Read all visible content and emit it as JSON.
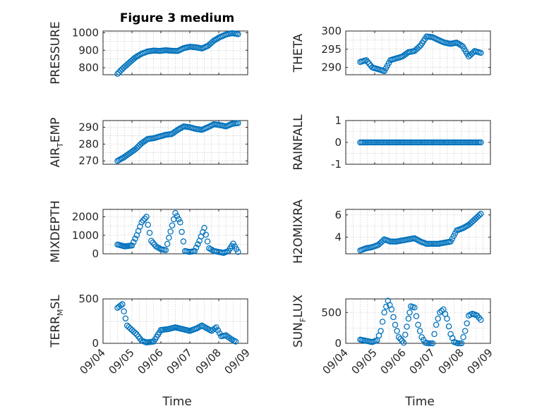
{
  "figure": {
    "title": "Figure 3 medium",
    "xlabel": "Time",
    "x_tick_labels": [
      "09/04",
      "09/05",
      "09/06",
      "09/07",
      "09/08",
      "09/09"
    ],
    "marker_color": "#0072bd"
  },
  "chart_data": [
    {
      "type": "scatter",
      "ylabel": "PRESSURE",
      "ylim": [
        760,
        1010
      ],
      "yticks": [
        800,
        900,
        1000
      ],
      "grid": true,
      "x": [
        "09/04 12:00",
        "09/04 17:00",
        "09/04 22:00",
        "09/05 03:00",
        "09/05 08:00",
        "09/05 13:00",
        "09/05 18:00",
        "09/05 23:00",
        "09/06 04:00",
        "09/06 09:00",
        "09/06 14:00",
        "09/06 19:00",
        "09/07 00:00",
        "09/07 05:00",
        "09/07 10:00",
        "09/07 15:00",
        "09/07 20:00",
        "09/08 01:00",
        "09/08 06:00",
        "09/08 11:00",
        "09/08 16:00"
      ],
      "y": [
        765,
        800,
        830,
        860,
        880,
        893,
        898,
        896,
        900,
        897,
        896,
        912,
        920,
        917,
        910,
        925,
        955,
        975,
        990,
        998,
        992
      ]
    },
    {
      "type": "scatter",
      "ylabel": "THETA",
      "ylim": [
        288,
        300
      ],
      "yticks": [
        290,
        295,
        300
      ],
      "grid": true,
      "x": [
        "09/04 12:00",
        "09/04 17:00",
        "09/04 22:00",
        "09/05 03:00",
        "09/05 08:00",
        "09/05 13:00",
        "09/05 18:00",
        "09/05 23:00",
        "09/06 04:00",
        "09/06 09:00",
        "09/06 14:00",
        "09/06 19:00",
        "09/07 00:00",
        "09/07 05:00",
        "09/07 10:00",
        "09/07 15:00",
        "09/07 20:00",
        "09/08 01:00",
        "09/08 06:00",
        "09/08 11:00",
        "09/08 16:00"
      ],
      "y": [
        291.5,
        292,
        290,
        289.5,
        289,
        292,
        292.5,
        293,
        294.2,
        294.5,
        296,
        298.5,
        298.3,
        297.5,
        296.8,
        296.5,
        296.8,
        295.8,
        293,
        294.5,
        294
      ]
    },
    {
      "type": "scatter",
      "ylabel": "AIR_TEMP",
      "ylabel_main": "AIR",
      "ylabel_sub": "T",
      "ylabel_rest": "EMP",
      "ylim": [
        268,
        294
      ],
      "yticks": [
        270,
        280,
        290
      ],
      "grid": true,
      "x": [
        "09/04 12:00",
        "09/04 17:00",
        "09/04 22:00",
        "09/05 03:00",
        "09/05 08:00",
        "09/05 13:00",
        "09/05 18:00",
        "09/05 23:00",
        "09/06 04:00",
        "09/06 09:00",
        "09/06 14:00",
        "09/06 19:00",
        "09/07 00:00",
        "09/07 05:00",
        "09/07 10:00",
        "09/07 15:00",
        "09/07 20:00",
        "09/08 01:00",
        "09/08 06:00",
        "09/08 11:00",
        "09/08 16:00"
      ],
      "y": [
        270,
        272,
        274.5,
        277,
        280.5,
        283,
        283.5,
        284.5,
        285.5,
        286,
        288.5,
        290.5,
        290,
        289,
        288.5,
        290,
        291.8,
        291.3,
        290.5,
        292,
        292.5
      ]
    },
    {
      "type": "scatter",
      "ylabel": "RAINFALL",
      "ylim": [
        -1,
        1
      ],
      "yticks": [
        -1,
        0,
        1
      ],
      "grid": true,
      "x": [
        "09/04 12:00",
        "09/04 17:00",
        "09/04 22:00",
        "09/05 03:00",
        "09/05 08:00",
        "09/05 13:00",
        "09/05 18:00",
        "09/05 23:00",
        "09/06 04:00",
        "09/06 09:00",
        "09/06 14:00",
        "09/06 19:00",
        "09/07 00:00",
        "09/07 05:00",
        "09/07 10:00",
        "09/07 15:00",
        "09/07 20:00",
        "09/08 01:00",
        "09/08 06:00",
        "09/08 11:00",
        "09/08 16:00"
      ],
      "y": [
        0,
        0,
        0,
        0,
        0,
        0,
        0,
        0,
        0,
        0,
        0,
        0,
        0,
        0,
        0,
        0,
        0,
        0,
        0,
        0,
        0
      ]
    },
    {
      "type": "scatter",
      "ylabel": "MIXDEPTH",
      "ylim": [
        0,
        2400
      ],
      "yticks": [
        0,
        1000,
        2000
      ],
      "grid": true,
      "x": [
        "09/04 12:00",
        "09/04 18:00",
        "09/05 00:00",
        "09/05 04:00",
        "09/05 08:00",
        "09/05 12:00",
        "09/05 16:00",
        "09/05 20:00",
        "09/06 00:00",
        "09/06 04:00",
        "09/06 08:00",
        "09/06 12:00",
        "09/06 16:00",
        "09/06 20:00",
        "09/07 00:00",
        "09/07 04:00",
        "09/07 08:00",
        "09/07 12:00",
        "09/07 16:00",
        "09/07 20:00",
        "09/08 00:00",
        "09/08 04:00",
        "09/08 08:00",
        "09/08 12:00",
        "09/08 16:00"
      ],
      "y": [
        500,
        400,
        450,
        1000,
        1700,
        2000,
        700,
        400,
        250,
        200,
        1200,
        2200,
        1700,
        150,
        100,
        150,
        700,
        1400,
        300,
        150,
        100,
        50,
        150,
        550,
        100
      ]
    },
    {
      "type": "scatter",
      "ylabel": "H2OMIXRA",
      "ylim": [
        2.5,
        6.5
      ],
      "yticks": [
        4,
        6
      ],
      "grid": true,
      "x": [
        "09/04 12:00",
        "09/04 17:00",
        "09/04 22:00",
        "09/05 03:00",
        "09/05 08:00",
        "09/05 13:00",
        "09/05 18:00",
        "09/05 23:00",
        "09/06 04:00",
        "09/06 09:00",
        "09/06 14:00",
        "09/06 19:00",
        "09/07 00:00",
        "09/07 05:00",
        "09/07 10:00",
        "09/07 15:00",
        "09/07 20:00",
        "09/08 01:00",
        "09/08 06:00",
        "09/08 11:00",
        "09/08 16:00"
      ],
      "y": [
        2.8,
        3.0,
        3.1,
        3.3,
        3.8,
        3.6,
        3.6,
        3.7,
        3.8,
        3.9,
        3.6,
        3.4,
        3.4,
        3.4,
        3.5,
        3.6,
        4.6,
        4.8,
        5.1,
        5.6,
        6.1
      ]
    },
    {
      "type": "scatter",
      "ylabel": "TERR_MSL",
      "ylabel_main": "TERR",
      "ylabel_sub": "M",
      "ylabel_rest": "SL",
      "ylim": [
        0,
        500
      ],
      "yticks": [
        0,
        500
      ],
      "grid": true,
      "x": [
        "09/04 12:00",
        "09/04 16:00",
        "09/04 20:00",
        "09/05 00:00",
        "09/05 04:00",
        "09/05 08:00",
        "09/05 12:00",
        "09/05 18:00",
        "09/06 00:00",
        "09/06 06:00",
        "09/06 12:00",
        "09/06 18:00",
        "09/07 00:00",
        "09/07 06:00",
        "09/07 10:00",
        "09/07 14:00",
        "09/07 18:00",
        "09/07 22:00",
        "09/08 02:00",
        "09/08 06:00",
        "09/08 10:00",
        "09/08 14:00"
      ],
      "y": [
        400,
        440,
        200,
        150,
        100,
        30,
        10,
        20,
        150,
        160,
        180,
        160,
        140,
        170,
        200,
        170,
        140,
        180,
        80,
        90,
        50,
        20
      ]
    },
    {
      "type": "scatter",
      "ylabel": "SUN_FLUX",
      "ylabel_main": "SUN",
      "ylabel_sub": "F",
      "ylabel_rest": "LUX",
      "ylim": [
        0,
        720
      ],
      "yticks": [
        0,
        500
      ],
      "grid": true,
      "x": [
        "09/04 12:00",
        "09/04 17:00",
        "09/04 22:00",
        "09/05 02:00",
        "09/05 05:00",
        "09/05 08:00",
        "09/05 11:00",
        "09/05 14:00",
        "09/05 17:00",
        "09/05 20:00",
        "09/06 00:00",
        "09/06 04:00",
        "09/06 06:00",
        "09/06 09:00",
        "09/06 12:00",
        "09/06 15:00",
        "09/06 18:00",
        "09/06 21:00",
        "09/07 00:00",
        "09/07 03:00",
        "09/07 06:00",
        "09/07 09:00",
        "09/07 12:00",
        "09/07 15:00",
        "09/07 18:00",
        "09/07 21:00",
        "09/08 00:00",
        "09/08 03:00",
        "09/08 06:00",
        "09/08 09:00",
        "09/08 13:00",
        "09/08 16:00"
      ],
      "y": [
        60,
        40,
        20,
        50,
        200,
        500,
        690,
        550,
        300,
        100,
        10,
        400,
        600,
        580,
        300,
        100,
        10,
        0,
        0,
        300,
        500,
        550,
        400,
        150,
        20,
        0,
        0,
        200,
        450,
        480,
        450,
        380
      ]
    }
  ]
}
